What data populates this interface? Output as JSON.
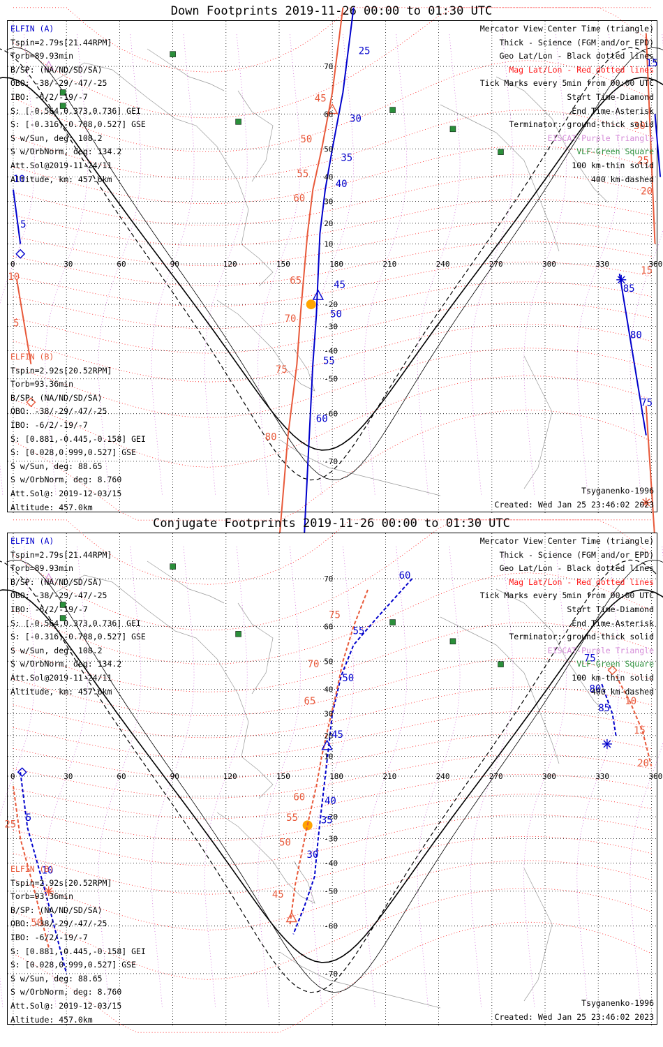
{
  "titles": {
    "down": "Down Footprints 2019-11-26 00:00 to 01:30 UTC",
    "conj": "Conjugate Footprints 2019-11-26 00:00 to 01:30 UTC"
  },
  "sat_a": {
    "name": "ELFIN (A)",
    "lines": [
      "Tspin=2.79s[21.44RPM]",
      "Torb=89.93min",
      "B/SP: (NA/ND/SD/SA)",
      "OBO: -38/-29/-47/-25",
      "IBO: -6/2/-19/-7",
      "S: [-0.564,0.373,0.736] GEI",
      "S: [-0.316,-0.788,0.527] GSE",
      "S w/Sun, deg: 108.2",
      "S w/OrbNorm, deg: 134.2",
      "Att.Sol@2019-11-24/11",
      "Altitude, km: 457.6km"
    ]
  },
  "sat_b": {
    "name": "ELFIN (B)",
    "lines": [
      "Tspin=2.92s[20.52RPM]",
      "Torb=93.36min",
      "B/SP: (NA/ND/SD/SA)",
      "OBO: -38/-29/-47/-25",
      "IBO: -6/2/-19/-7",
      "S: [0.881,-0.445,-0.158] GEI",
      "S: [0.028,0.999,0.527] GSE",
      "S w/Sun, deg: 88.65",
      "S w/OrbNorm, deg: 8.760",
      "Att.Sol@: 2019-12-03/15",
      "Altitude: 457.0km"
    ]
  },
  "legend": [
    {
      "text": "Mercator View Center Time (triangle)",
      "color": "#000000"
    },
    {
      "text": "Thick - Science (FGM and/or EPD)",
      "color": "#000000"
    },
    {
      "text": "Geo Lat/Lon - Black dotted lines",
      "color": "#000000"
    },
    {
      "text": "Mag Lat/Lon - Red dotted lines",
      "color": "#ff1a1a"
    },
    {
      "text": "Tick Marks every 5min from 00:00 UTC",
      "color": "#000000"
    },
    {
      "text": "Start Time-Diamond",
      "color": "#000000"
    },
    {
      "text": "End Time-Asterisk",
      "color": "#000000"
    },
    {
      "text": "Terminator: ground-thick solid",
      "color": "#000000"
    },
    {
      "text": "EISCAT-Purple Triangle",
      "color": "#d58cd8"
    },
    {
      "text": "VLF-Green Square",
      "color": "#2a8f3a"
    },
    {
      "text": "100 km-thin solid",
      "color": "#000000"
    },
    {
      "text": "400 km-dashed",
      "color": "#000000"
    }
  ],
  "footer": {
    "model": "Tsyganenko-1996",
    "created": "Created: Wed Jan 25 23:46:02 2023"
  },
  "axis": {
    "lon_ticks": [
      0,
      30,
      60,
      90,
      120,
      150,
      180,
      210,
      240,
      270,
      300,
      330,
      360
    ],
    "lat_labels": [
      70,
      60,
      50,
      40,
      30,
      20,
      10,
      -20,
      -30,
      -40,
      -50,
      -60,
      -70
    ]
  },
  "colors": {
    "elfin_a": "#0000cc",
    "elfin_b": "#e8593a",
    "geo_grid": "#000000",
    "mag_grid": "#ff1a1a",
    "eiscat": "#d58cd8",
    "vlf": "#2a8f3a",
    "subsolar": "#ffa500"
  },
  "tick_labels": {
    "down": {
      "a_main": [
        "25",
        "30",
        "35",
        "40",
        "45",
        "50",
        "55",
        "60"
      ],
      "a_left": [
        "10",
        "5"
      ],
      "a_right": [
        "15",
        "85",
        "80",
        "75"
      ],
      "b_main": [
        "45",
        "50",
        "55",
        "60",
        "65",
        "70",
        "75",
        "80"
      ],
      "b_left": [
        "10",
        "5"
      ],
      "b_right": [
        "30",
        "25",
        "20",
        "15"
      ]
    },
    "conj": {
      "a_main": [
        "60",
        "55",
        "50",
        "45",
        "40",
        "35",
        "30"
      ],
      "a_left": [
        "5",
        "10"
      ],
      "a_right": [
        "75",
        "80",
        "85"
      ],
      "b_main": [
        "75",
        "70",
        "65",
        "60",
        "55",
        "50",
        "45"
      ],
      "b_left": [
        "25",
        "50"
      ],
      "b_right": [
        "10",
        "15",
        "20"
      ]
    }
  }
}
